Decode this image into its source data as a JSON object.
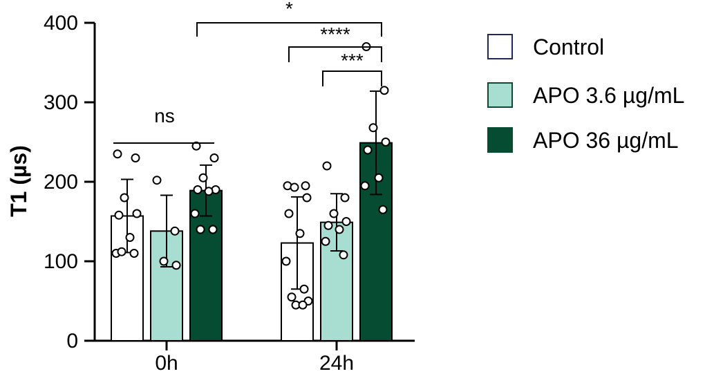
{
  "chart_data": {
    "type": "bar",
    "ylabel": "T1 (µs)",
    "xlabel": "",
    "ylim": [
      0,
      400
    ],
    "yticks": [
      0,
      100,
      200,
      300,
      400
    ],
    "categories": [
      "0h",
      "24h"
    ],
    "legend_position": "right",
    "series": [
      {
        "name": "Control",
        "color": "#ffffff",
        "values": [
          157,
          123
        ],
        "sd": [
          46,
          58
        ],
        "points": [
          [
            235,
            230,
            180,
            160,
            158,
            130,
            110,
            110,
            112
          ],
          [
            195,
            195,
            193,
            180,
            160,
            135,
            100,
            65,
            55,
            50,
            45,
            45
          ]
        ]
      },
      {
        "name": "APO 3.6 µg/mL",
        "color": "#a8ddd2",
        "values": [
          138,
          149
        ],
        "sd": [
          45,
          36
        ],
        "points": [
          [
            202,
            138,
            100,
            95
          ],
          [
            220,
            180,
            160,
            150,
            145,
            140,
            125,
            108
          ]
        ]
      },
      {
        "name": "APO 36 µg/mL",
        "color": "#064c32",
        "values": [
          189,
          249
        ],
        "sd": [
          32,
          65
        ],
        "points": [
          [
            245,
            230,
            205,
            190,
            190,
            188,
            160,
            140,
            140
          ],
          [
            370,
            315,
            268,
            250,
            240,
            205,
            195,
            165
          ]
        ]
      }
    ],
    "significance": [
      {
        "label": "ns",
        "from": "0h:Control",
        "to": "0h:APO 36 µg/mL"
      },
      {
        "label": "*",
        "from": "0h:APO 36 µg/mL",
        "to": "24h:APO 36 µg/mL"
      },
      {
        "label": "****",
        "from": "24h:Control",
        "to": "24h:APO 36 µg/mL"
      },
      {
        "label": "***",
        "from": "24h:APO 3.6 µg/mL",
        "to": "24h:APO 36 µg/mL"
      }
    ]
  }
}
